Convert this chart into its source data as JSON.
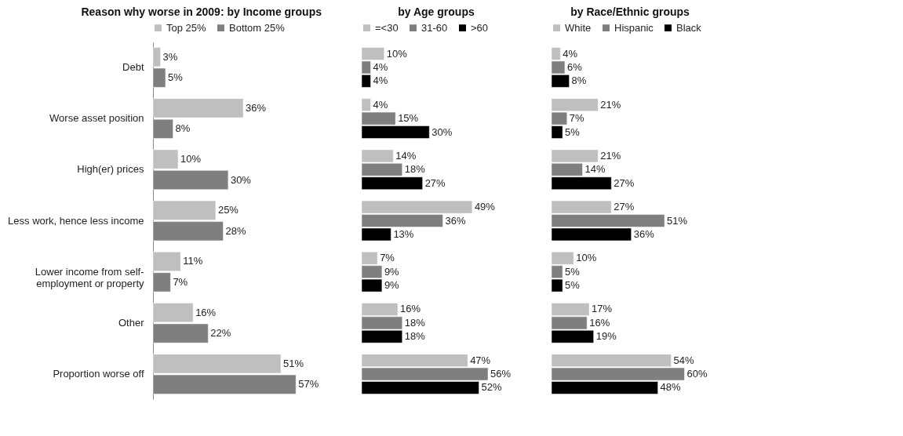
{
  "chart_data": [
    {
      "type": "bar",
      "orientation": "horizontal",
      "title": "Reason why worse in 2009: by Income groups",
      "categories": [
        "Debt",
        "Worse asset position",
        "High(er) prices",
        "Less work, hence less income",
        "Lower income from self-employment or property",
        "Other",
        "Proportion worse off"
      ],
      "series": [
        {
          "name": "Top 25%",
          "color": "#bfbfbf",
          "values": [
            3,
            36,
            10,
            25,
            11,
            16,
            51
          ],
          "value_labels": [
            "3%",
            "36%",
            "10%",
            "25%",
            "11%",
            "16%",
            "51%"
          ]
        },
        {
          "name": "Bottom 25%",
          "color": "#7f7f7f",
          "values": [
            5,
            8,
            30,
            28,
            7,
            22,
            57
          ],
          "value_labels": [
            "5%",
            "8%",
            "30%",
            "28%",
            "7%",
            "22%",
            "57%"
          ]
        }
      ],
      "legend": "top",
      "tick_labels": "y"
    },
    {
      "type": "bar",
      "orientation": "horizontal",
      "title": "by Age groups",
      "categories": [
        "Debt",
        "Worse asset position",
        "High(er) prices",
        "Less work, hence less income",
        "Lower income from self-employment or property",
        "Other",
        "Proportion worse off"
      ],
      "series": [
        {
          "name": "=<30",
          "color": "#bfbfbf",
          "values": [
            10,
            4,
            14,
            49,
            7,
            16,
            47
          ],
          "value_labels": [
            "10%",
            "4%",
            "14%",
            "49%",
            "7%",
            "16%",
            "47%"
          ]
        },
        {
          "name": "31-60",
          "color": "#7f7f7f",
          "values": [
            4,
            15,
            18,
            36,
            9,
            18,
            56
          ],
          "value_labels": [
            "4%",
            "15%",
            "18%",
            "36%",
            "9%",
            "18%",
            "56%"
          ]
        },
        {
          "name": ">60",
          "color": "#000000",
          "values": [
            4,
            30,
            27,
            13,
            9,
            18,
            52
          ],
          "value_labels": [
            "4%",
            "30%",
            "27%",
            "13%",
            "9%",
            "18%",
            "52%"
          ]
        }
      ],
      "legend": "top",
      "tick_labels": false
    },
    {
      "type": "bar",
      "orientation": "horizontal",
      "title": "by Race/Ethnic groups",
      "categories": [
        "Debt",
        "Worse asset position",
        "High(er) prices",
        "Less work, hence less income",
        "Lower income from self-employment or property",
        "Other",
        "Proportion worse off"
      ],
      "series": [
        {
          "name": "White",
          "color": "#bfbfbf",
          "values": [
            4,
            21,
            21,
            27,
            10,
            17,
            54
          ],
          "value_labels": [
            "4%",
            "21%",
            "21%",
            "27%",
            "10%",
            "17%",
            "54%"
          ]
        },
        {
          "name": "Hispanic",
          "color": "#7f7f7f",
          "values": [
            6,
            7,
            14,
            51,
            5,
            16,
            60
          ],
          "value_labels": [
            "6%",
            "7%",
            "14%",
            "51%",
            "5%",
            "16%",
            "60%"
          ]
        },
        {
          "name": "Black",
          "color": "#000000",
          "values": [
            8,
            5,
            27,
            36,
            5,
            19,
            48
          ],
          "value_labels": [
            "8%",
            "5%",
            "27%",
            "36%",
            "5%",
            "19%",
            "48%"
          ]
        }
      ],
      "legend": "top",
      "tick_labels": false
    }
  ]
}
